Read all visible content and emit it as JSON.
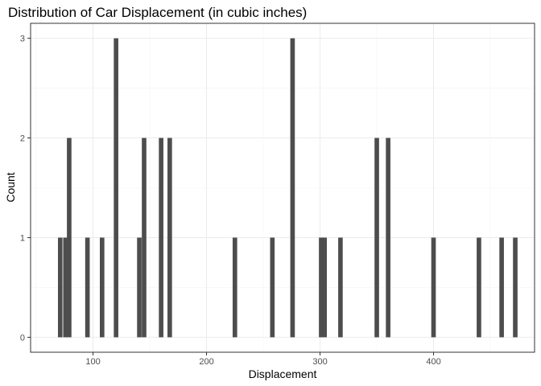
{
  "chart_data": {
    "type": "bar",
    "title": "Distribution of Car Displacement (in cubic inches)",
    "xlabel": "Displacement",
    "ylabel": "Count",
    "xlim": [
      45,
      489
    ],
    "ylim": [
      -0.15,
      3.15
    ],
    "xticks": [
      100,
      200,
      300,
      400
    ],
    "yticks": [
      0,
      1,
      2,
      3
    ],
    "bin_width": 4.0,
    "grid": true,
    "bars": [
      {
        "x": 71.1,
        "count": 1
      },
      {
        "x": 75.7,
        "count": 1
      },
      {
        "x": 79.0,
        "count": 2
      },
      {
        "x": 95.1,
        "count": 1
      },
      {
        "x": 108.0,
        "count": 1
      },
      {
        "x": 120.3,
        "count": 3
      },
      {
        "x": 140.8,
        "count": 1
      },
      {
        "x": 145.0,
        "count": 2
      },
      {
        "x": 160.0,
        "count": 2
      },
      {
        "x": 167.6,
        "count": 2
      },
      {
        "x": 225.0,
        "count": 1
      },
      {
        "x": 258.0,
        "count": 1
      },
      {
        "x": 275.8,
        "count": 3
      },
      {
        "x": 301.0,
        "count": 1
      },
      {
        "x": 304.0,
        "count": 1
      },
      {
        "x": 318.0,
        "count": 1
      },
      {
        "x": 350.0,
        "count": 2
      },
      {
        "x": 360.0,
        "count": 2
      },
      {
        "x": 400.0,
        "count": 1
      },
      {
        "x": 440.0,
        "count": 1
      },
      {
        "x": 460.0,
        "count": 1
      },
      {
        "x": 472.0,
        "count": 1
      }
    ]
  },
  "colors": {
    "bar": "#4d4d4d",
    "background": "#ffffff"
  }
}
